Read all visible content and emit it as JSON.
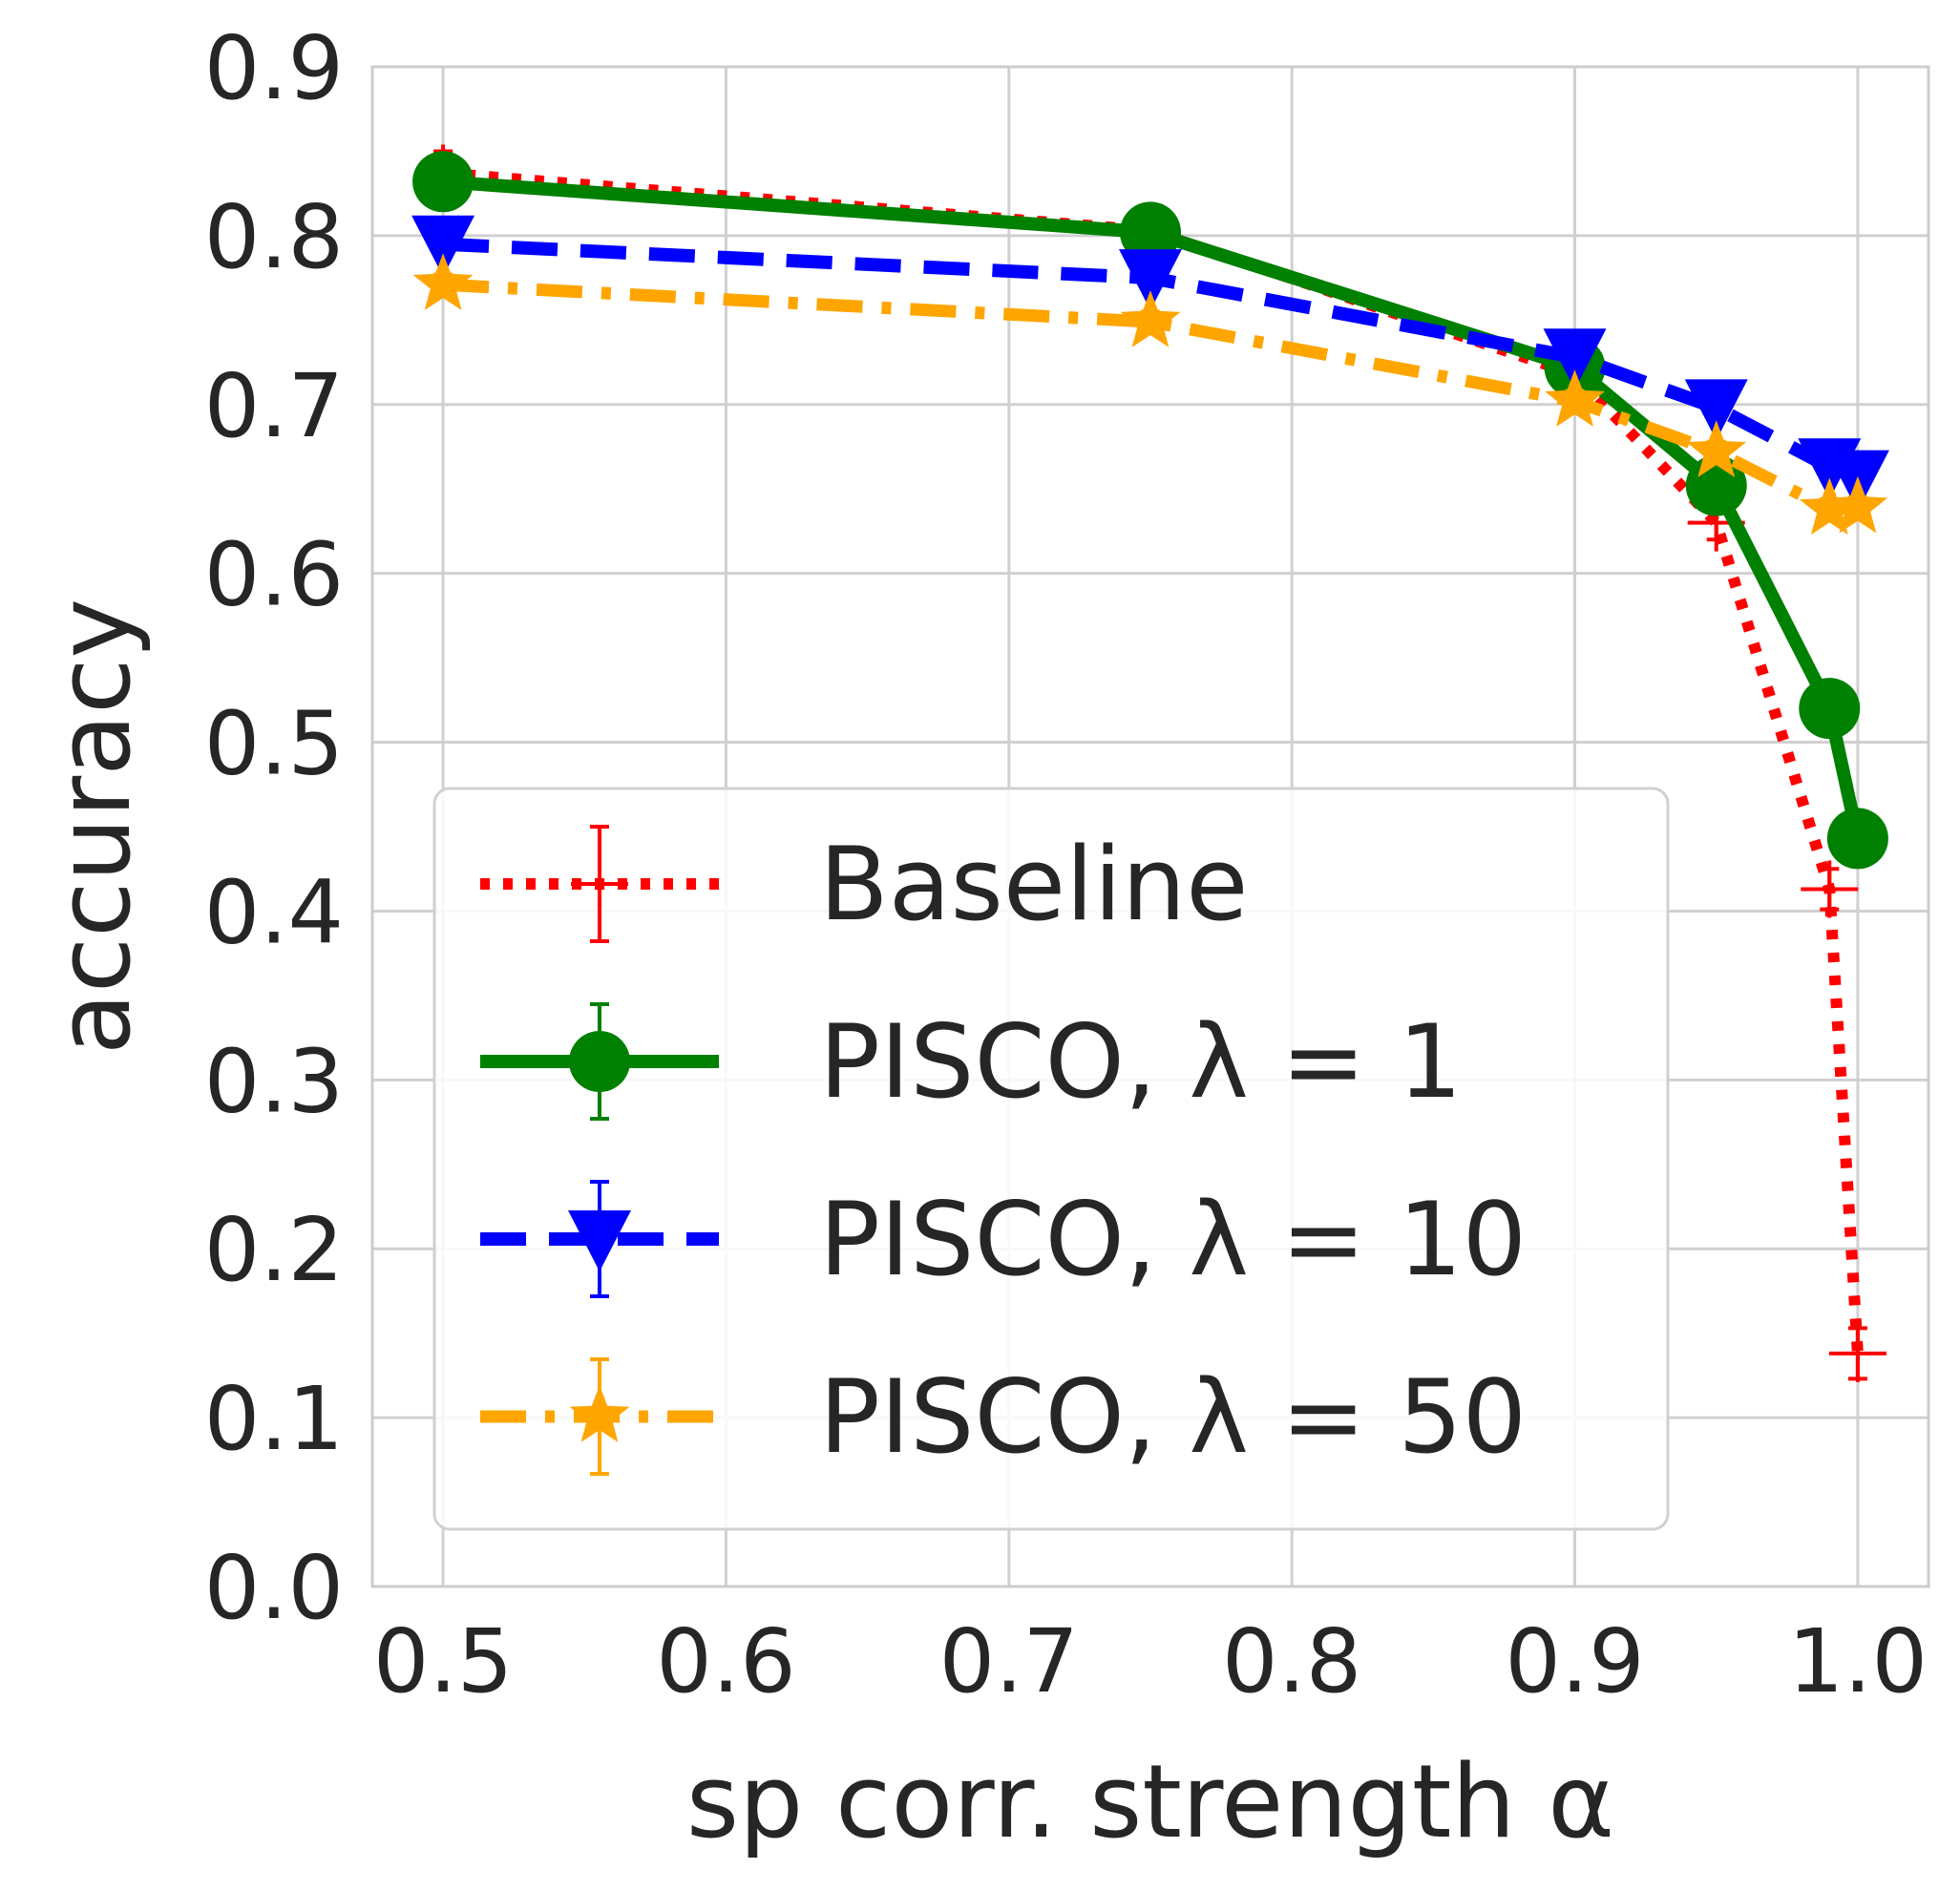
{
  "chart_data": {
    "type": "line",
    "xlabel": "sp corr. strength α",
    "ylabel": "accuracy",
    "xlim": [
      0.475,
      1.025
    ],
    "ylim": [
      0.0,
      0.9
    ],
    "xticks": [
      "0.5",
      "0.6",
      "0.7",
      "0.8",
      "0.9",
      "1.0"
    ],
    "xtick_values": [
      0.5,
      0.6,
      0.7,
      0.8,
      0.9,
      1.0
    ],
    "yticks": [
      "0.0",
      "0.1",
      "0.2",
      "0.3",
      "0.4",
      "0.5",
      "0.6",
      "0.7",
      "0.8",
      "0.9"
    ],
    "ytick_values": [
      0.0,
      0.1,
      0.2,
      0.3,
      0.4,
      0.5,
      0.6,
      0.7,
      0.8,
      0.9
    ],
    "grid": true,
    "legend_position": "lower-left",
    "series": [
      {
        "name": "Baseline",
        "color": "#ff0000",
        "line_style": "dotted",
        "marker": "plus",
        "x": [
          0.5,
          0.75,
          0.9,
          0.95,
          0.99,
          1.0
        ],
        "y": [
          0.837,
          0.803,
          0.718,
          0.63,
          0.413,
          0.138
        ],
        "err": [
          0.013,
          0.006,
          0.008,
          0.01,
          0.012,
          0.015
        ]
      },
      {
        "name": "PISCO, λ = 1",
        "color": "#008000",
        "line_style": "solid",
        "marker": "circle",
        "x": [
          0.5,
          0.75,
          0.9,
          0.95,
          0.99,
          1.0
        ],
        "y": [
          0.832,
          0.802,
          0.722,
          0.652,
          0.52,
          0.443
        ],
        "err": [
          0.006,
          0.005,
          0.006,
          0.008,
          0.01,
          0.01
        ]
      },
      {
        "name": "PISCO, λ = 10",
        "color": "#0000ff",
        "line_style": "dashed",
        "marker": "triangle-down",
        "x": [
          0.5,
          0.75,
          0.9,
          0.95,
          0.99,
          1.0
        ],
        "y": [
          0.795,
          0.775,
          0.728,
          0.698,
          0.663,
          0.656
        ],
        "err": [
          0.006,
          0.006,
          0.006,
          0.006,
          0.006,
          0.006
        ]
      },
      {
        "name": "PISCO, λ = 50",
        "color": "#ffa500",
        "line_style": "dashdot",
        "marker": "star",
        "x": [
          0.5,
          0.75,
          0.9,
          0.95,
          0.99,
          1.0
        ],
        "y": [
          0.771,
          0.749,
          0.702,
          0.672,
          0.638,
          0.639
        ],
        "err": [
          0.006,
          0.006,
          0.006,
          0.006,
          0.006,
          0.006
        ]
      }
    ]
  }
}
